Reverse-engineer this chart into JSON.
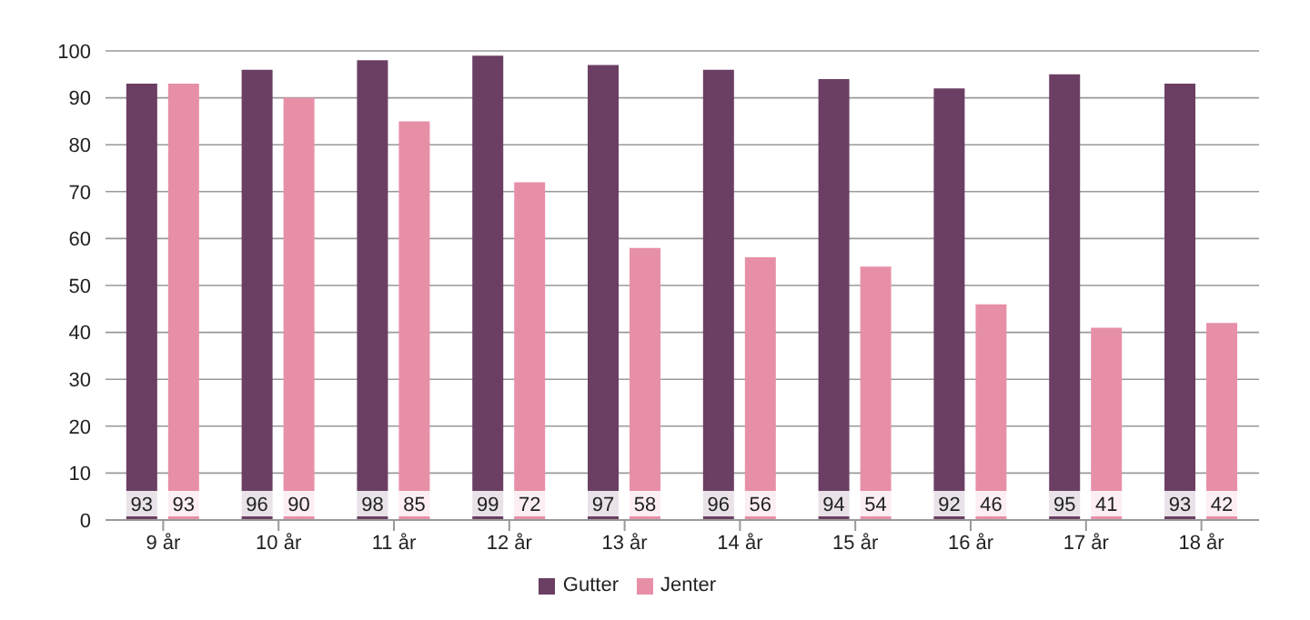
{
  "chart_data": {
    "type": "bar",
    "categories": [
      "9 år",
      "10 år",
      "11 år",
      "12 år",
      "13 år",
      "14 år",
      "15 år",
      "16 år",
      "17 år",
      "18 år"
    ],
    "series": [
      {
        "name": "Gutter",
        "color": "#6b3f63",
        "values": [
          93,
          96,
          98,
          99,
          97,
          96,
          94,
          92,
          95,
          93
        ]
      },
      {
        "name": "Jenter",
        "color": "#e88fa8",
        "values": [
          93,
          90,
          85,
          72,
          58,
          56,
          54,
          46,
          41,
          42
        ]
      }
    ],
    "ylim": [
      0,
      100
    ],
    "yticks": [
      0,
      10,
      20,
      30,
      40,
      50,
      60,
      70,
      80,
      90,
      100
    ],
    "grid": "y",
    "legend": "bottom",
    "data_labels": true
  }
}
